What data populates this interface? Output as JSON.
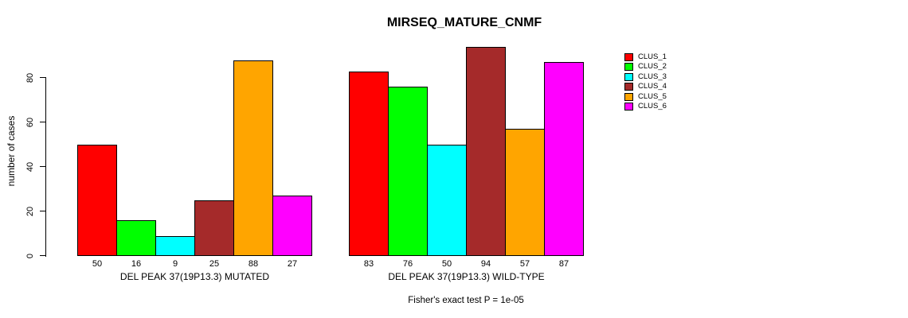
{
  "chart_data": {
    "type": "bar",
    "title": "MIRSEQ_MATURE_CNMF",
    "xlabel": "",
    "ylabel": "number of cases",
    "subtitle_below": "Fisher's exact test P = 1e-05",
    "categories": [
      "DEL PEAK 37(19P13.3) MUTATED",
      "DEL PEAK 37(19P13.3) WILD-TYPE"
    ],
    "series": [
      {
        "name": "CLUS_1",
        "color": "#ff0000",
        "values": [
          50,
          83
        ]
      },
      {
        "name": "CLUS_2",
        "color": "#00ff00",
        "values": [
          16,
          76
        ]
      },
      {
        "name": "CLUS_3",
        "color": "#00ffff",
        "values": [
          9,
          50
        ]
      },
      {
        "name": "CLUS_4",
        "color": "#a52a2a",
        "values": [
          25,
          94
        ]
      },
      {
        "name": "CLUS_5",
        "color": "#ffa500",
        "values": [
          88,
          57
        ]
      },
      {
        "name": "CLUS_6",
        "color": "#ff00ff",
        "values": [
          27,
          87
        ]
      }
    ],
    "bar_value_labels": [
      [
        50,
        16,
        9,
        25,
        88,
        27
      ],
      [
        83,
        76,
        50,
        94,
        57,
        87
      ]
    ],
    "yticks": [
      0,
      20,
      40,
      60,
      80
    ],
    "ylim": [
      0,
      100
    ],
    "grid": false,
    "legend_position": "right",
    "axis_color": "#000000",
    "background_color": "#ffffff"
  }
}
